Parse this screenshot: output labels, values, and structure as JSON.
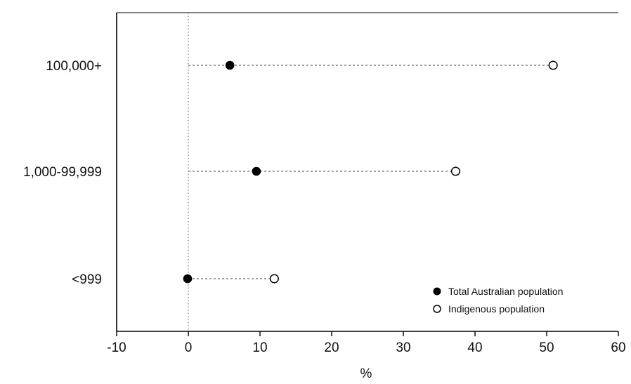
{
  "chart_data": {
    "type": "dot",
    "title": "",
    "xlabel": "%",
    "ylabel": "",
    "xlim": [
      -10,
      60
    ],
    "xticks": [
      -10,
      0,
      10,
      20,
      30,
      40,
      50,
      60
    ],
    "xtick_labels": [
      "-10",
      "0",
      "10",
      "20",
      "30",
      "40",
      "50",
      "60"
    ],
    "grid": false,
    "legend_position": "bottom-right",
    "categories": [
      "100,000+",
      "1,000-99,999",
      "<999"
    ],
    "series": [
      {
        "name": "Total Australian population",
        "marker": "filled-circle",
        "color": "#000000",
        "values": [
          5.8,
          9.5,
          -0.1
        ]
      },
      {
        "name": "Indigenous population",
        "marker": "open-circle",
        "color": "#000000",
        "values": [
          50.9,
          37.3,
          12.0
        ]
      }
    ]
  }
}
